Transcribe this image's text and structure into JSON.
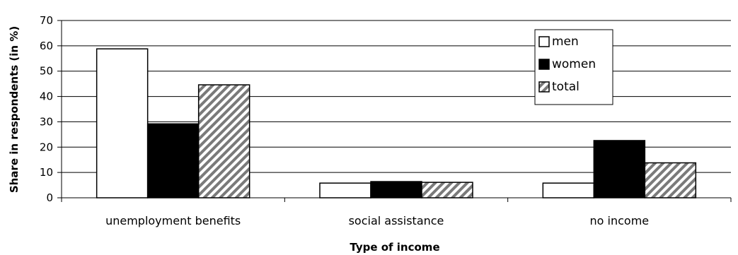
{
  "chart_data": {
    "type": "bar",
    "categories": [
      "unemployment benefits",
      "social assistance",
      "no income"
    ],
    "series": [
      {
        "name": "men",
        "values": [
          58.8,
          5.8,
          5.8
        ],
        "fill": "#ffffff"
      },
      {
        "name": "women",
        "values": [
          29.2,
          6.4,
          22.6
        ],
        "fill": "#000000"
      },
      {
        "name": "total",
        "values": [
          44.6,
          6.1,
          13.8
        ],
        "fill": "hatch"
      }
    ],
    "title": "",
    "xlabel": "Type of income",
    "ylabel": "Share in respondents (in %)",
    "ylim": [
      0,
      70
    ],
    "yticks": [
      0,
      10,
      20,
      30,
      40,
      50,
      60,
      70
    ],
    "grid": true,
    "legend": "top-right"
  }
}
